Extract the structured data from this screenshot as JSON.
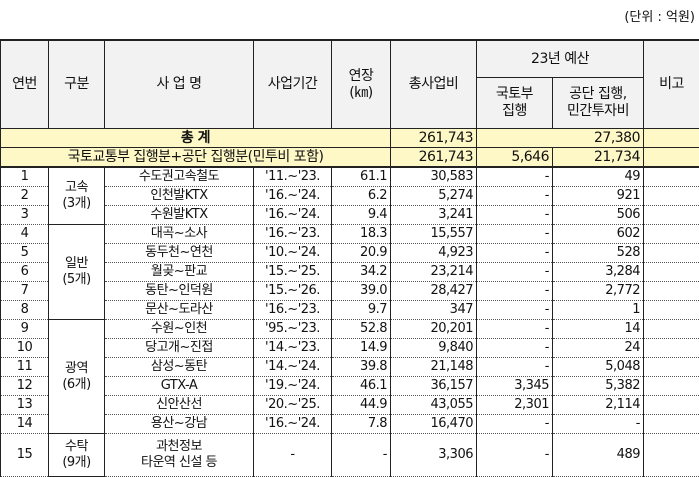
{
  "unit_note": "(단위 : 억원)",
  "headers": {
    "no": "연번",
    "category": "구분",
    "project": "사 업 명",
    "period": "사업기간",
    "length": "연장\n(㎞)",
    "length_line1": "연장",
    "length_line2": "(㎞)",
    "total_cost": "총사업비",
    "budget_group": "23년 예산",
    "molit": "국토부 집행",
    "molit_line1": "국토부",
    "molit_line2": "집행",
    "agency": "공단 집행, 민간투자비",
    "agency_line1": "공단 집행,",
    "agency_line2": "민간투자비",
    "remark": "비고"
  },
  "grand_total": {
    "label": "총 계",
    "total_cost": "261,743",
    "budget": "27,380"
  },
  "subtotal": {
    "label": "국토교통부 집행분+공단 집행분(민투비 포함)",
    "total_cost": "261,743",
    "molit": "5,646",
    "agency": "21,734"
  },
  "groups": [
    {
      "label1": "고속",
      "label2": "(3개)"
    },
    {
      "label1": "일반",
      "label2": "(5개)"
    },
    {
      "label1": "광역",
      "label2": "(6개)"
    },
    {
      "label1": "수탁",
      "label2": "(9개)"
    }
  ],
  "rows": [
    {
      "no": "1",
      "project": "수도권고속철도",
      "period": "'11.~'23.",
      "length": "61.1",
      "total_cost": "30,583",
      "molit": "-",
      "agency": "49"
    },
    {
      "no": "2",
      "project": "인천발KTX",
      "period": "'16.~'24.",
      "length": "6.2",
      "total_cost": "5,274",
      "molit": "-",
      "agency": "921"
    },
    {
      "no": "3",
      "project": "수원발KTX",
      "period": "'16.~'24.",
      "length": "9.4",
      "total_cost": "3,241",
      "molit": "-",
      "agency": "506"
    },
    {
      "no": "4",
      "project": "대곡~소사",
      "period": "'16.~'23.",
      "length": "18.3",
      "total_cost": "15,557",
      "molit": "-",
      "agency": "602"
    },
    {
      "no": "5",
      "project": "동두천~연천",
      "period": "'10.~'24.",
      "length": "20.9",
      "total_cost": "4,923",
      "molit": "-",
      "agency": "528"
    },
    {
      "no": "6",
      "project": "월곶~판교",
      "period": "'15.~'25.",
      "length": "34.2",
      "total_cost": "23,214",
      "molit": "-",
      "agency": "3,284"
    },
    {
      "no": "7",
      "project": "동탄~인덕원",
      "period": "'15.~'26.",
      "length": "39.0",
      "total_cost": "28,427",
      "molit": "-",
      "agency": "2,772"
    },
    {
      "no": "8",
      "project": "문산~도라산",
      "period": "'16.~'23.",
      "length": "9.7",
      "total_cost": "347",
      "molit": "-",
      "agency": "1"
    },
    {
      "no": "9",
      "project": "수원~인천",
      "period": "'95.~'23.",
      "length": "52.8",
      "total_cost": "20,201",
      "molit": "-",
      "agency": "14"
    },
    {
      "no": "10",
      "project": "당고개~진접",
      "period": "'14.~'23.",
      "length": "14.9",
      "total_cost": "9,840",
      "molit": "-",
      "agency": "24"
    },
    {
      "no": "11",
      "project": "삼성~동탄",
      "period": "'14.~'24.",
      "length": "39.8",
      "total_cost": "21,148",
      "molit": "-",
      "agency": "5,048"
    },
    {
      "no": "12",
      "project": "GTX-A",
      "period": "'19.~'24.",
      "length": "46.1",
      "total_cost": "36,157",
      "molit": "3,345",
      "agency": "5,382"
    },
    {
      "no": "13",
      "project": "신안산선",
      "period": "'20.~'25.",
      "length": "44.9",
      "total_cost": "43,055",
      "molit": "2,301",
      "agency": "2,114"
    },
    {
      "no": "14",
      "project": "용산~강남",
      "period": "'16.~'24.",
      "length": "7.8",
      "total_cost": "16,470",
      "molit": "-",
      "agency": "-"
    },
    {
      "no": "15",
      "project": "과천정보 타운역 신설 등",
      "project_line1": "과천정보",
      "project_line2": "타운역 신설 등",
      "period": "-",
      "length": "-",
      "total_cost": "3,306",
      "molit": "-",
      "agency": "489"
    }
  ]
}
